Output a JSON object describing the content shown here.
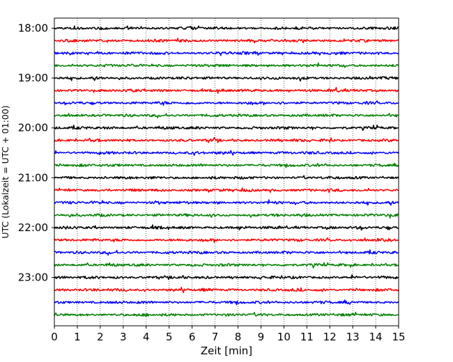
{
  "chart_data": {
    "type": "line",
    "title": "",
    "xlabel": "Zeit  [min]",
    "ylabel": "UTC (Lokalzeit = UTC + 01:00)",
    "xlim": [
      0,
      15
    ],
    "x_ticks": [
      0,
      1,
      2,
      3,
      4,
      5,
      6,
      7,
      8,
      9,
      10,
      11,
      12,
      13,
      14,
      15
    ],
    "y_tick_labels": [
      "18:00",
      "19:00",
      "20:00",
      "21:00",
      "22:00",
      "23:00"
    ],
    "grid": "vertical dotted",
    "legend": "none",
    "trace_minutes": 15,
    "trace_colors": [
      "#000000",
      "#ff0000",
      "#0000ff",
      "#008000"
    ],
    "traces": [
      {
        "start": "18:00",
        "color": "#000000"
      },
      {
        "start": "18:15",
        "color": "#ff0000"
      },
      {
        "start": "18:30",
        "color": "#0000ff"
      },
      {
        "start": "18:45",
        "color": "#008000"
      },
      {
        "start": "19:00",
        "color": "#000000"
      },
      {
        "start": "19:15",
        "color": "#ff0000"
      },
      {
        "start": "19:30",
        "color": "#0000ff"
      },
      {
        "start": "19:45",
        "color": "#008000"
      },
      {
        "start": "20:00",
        "color": "#000000"
      },
      {
        "start": "20:15",
        "color": "#ff0000"
      },
      {
        "start": "20:30",
        "color": "#0000ff"
      },
      {
        "start": "20:45",
        "color": "#008000"
      },
      {
        "start": "21:00",
        "color": "#000000"
      },
      {
        "start": "21:15",
        "color": "#ff0000"
      },
      {
        "start": "21:30",
        "color": "#0000ff"
      },
      {
        "start": "21:45",
        "color": "#008000"
      },
      {
        "start": "22:00",
        "color": "#000000"
      },
      {
        "start": "22:15",
        "color": "#ff0000"
      },
      {
        "start": "22:30",
        "color": "#0000ff"
      },
      {
        "start": "22:45",
        "color": "#008000"
      },
      {
        "start": "23:00",
        "color": "#000000"
      },
      {
        "start": "23:15",
        "color": "#ff0000"
      },
      {
        "start": "23:30",
        "color": "#0000ff"
      },
      {
        "start": "23:45",
        "color": "#008000"
      }
    ]
  }
}
